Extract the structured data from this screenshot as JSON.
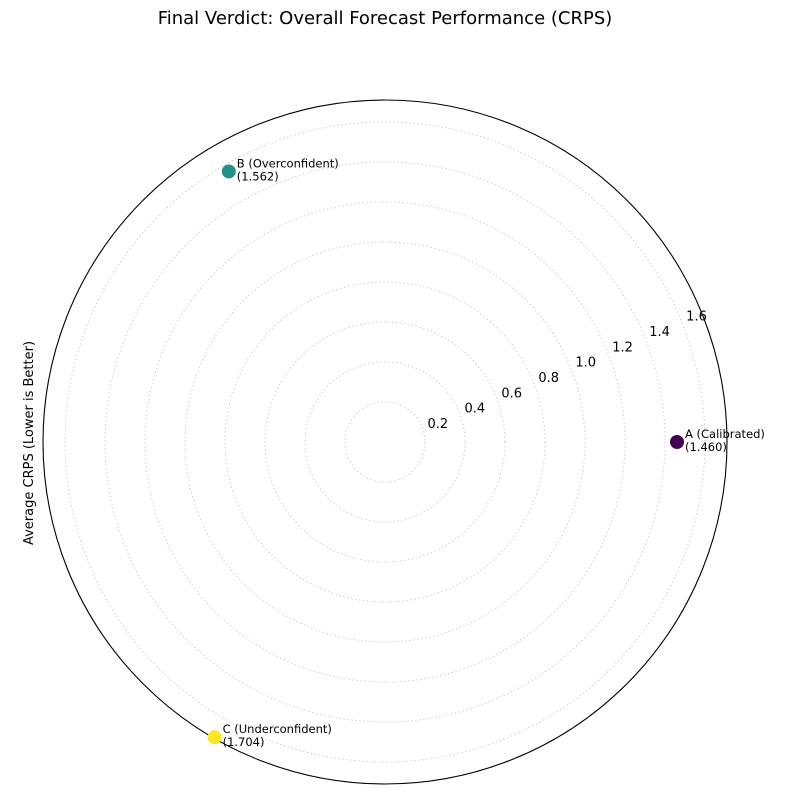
{
  "chart_data": {
    "type": "scatter",
    "projection": "polar",
    "title": "Final Verdict: Overall Forecast Performance (CRPS)",
    "ylabel": "Average CRPS (Lower is Better)",
    "xlabel": "",
    "rlim": [
      0,
      1.71
    ],
    "r_ticks": [
      0.2,
      0.4,
      0.6,
      0.8,
      1.0,
      1.2,
      1.4,
      1.6
    ],
    "r_tick_labels": [
      "0.2",
      "0.4",
      "0.6",
      "0.8",
      "1.0",
      "1.2",
      "1.4",
      "1.6"
    ],
    "theta_ticks_visible": false,
    "grid": true,
    "colormap": "viridis",
    "points": [
      {
        "name": "A (Calibrated)",
        "value": 1.46,
        "value_label": "(1.460)",
        "theta_deg": 0,
        "color": "#440154"
      },
      {
        "name": "B (Overconfident)",
        "value": 1.562,
        "value_label": "(1.562)",
        "theta_deg": 120,
        "color": "#21918c"
      },
      {
        "name": "C (Underconfident)",
        "value": 1.704,
        "value_label": "(1.704)",
        "theta_deg": 240,
        "color": "#fde725"
      }
    ]
  }
}
